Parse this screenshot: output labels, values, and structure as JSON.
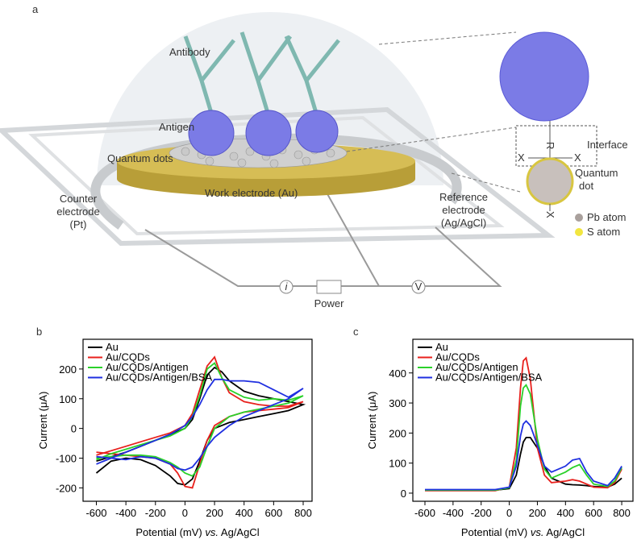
{
  "panel_labels": [
    "a",
    "b",
    "c"
  ],
  "diagram": {
    "antibody": "Antibody",
    "antigen": "Antigen",
    "quantum_dots": "Quantum dots",
    "work_electrode": "Work electrode (Au)",
    "counter_electrode": [
      "Counter",
      "electrode",
      "(Pt)"
    ],
    "reference_electrode": [
      "Reference",
      "electrode",
      "(Ag/AgCl)"
    ],
    "interface": "Interface",
    "quantum_dot": [
      "Quantum",
      "dot"
    ],
    "r": "R",
    "x": "X",
    "pb_atom": "Pb atom",
    "s_atom": "S atom",
    "current": "i",
    "voltage": "V",
    "power": "Power"
  },
  "chart_data": [
    {
      "type": "line",
      "ylabel": "Current (μA)",
      "xlabel": [
        "Potential (mV) ",
        "vs.",
        " Ag/AgCl"
      ],
      "xlim": [
        -690,
        860
      ],
      "ylim": [
        -245,
        300
      ],
      "xticks": [
        -600,
        -400,
        -200,
        0,
        200,
        400,
        600,
        800
      ],
      "yticks": [
        -200,
        -100,
        0,
        100,
        200
      ],
      "x": [
        -600,
        -500,
        -400,
        -300,
        -200,
        -100,
        0,
        50,
        100,
        150,
        200,
        250,
        300,
        400,
        500,
        600,
        700,
        800,
        700,
        600,
        500,
        400,
        300,
        200,
        150,
        100,
        50,
        0,
        -50,
        -100,
        -200,
        -300,
        -400,
        -500,
        -600
      ],
      "series": [
        {
          "name": "Au",
          "color": "#000000",
          "values": [
            -110,
            -95,
            -80,
            -60,
            -40,
            -20,
            0,
            30,
            100,
            180,
            205,
            190,
            160,
            125,
            110,
            100,
            90,
            80,
            60,
            50,
            40,
            30,
            20,
            0,
            -40,
            -110,
            -170,
            -190,
            -185,
            -160,
            -125,
            -105,
            -100,
            -110,
            -150
          ]
        },
        {
          "name": "Au/CQDs",
          "color": "#e8201c",
          "values": [
            -90,
            -75,
            -60,
            -45,
            -30,
            -15,
            10,
            50,
            130,
            210,
            240,
            170,
            120,
            90,
            80,
            75,
            75,
            90,
            70,
            65,
            60,
            55,
            40,
            10,
            -40,
            -120,
            -200,
            -195,
            -150,
            -120,
            -100,
            -95,
            -90,
            -85,
            -80
          ]
        },
        {
          "name": "Au/CQDs/Antigen",
          "color": "#2ad12a",
          "values": [
            -105,
            -85,
            -70,
            -55,
            -40,
            -25,
            0,
            40,
            110,
            200,
            220,
            170,
            130,
            105,
            95,
            100,
            95,
            110,
            85,
            75,
            65,
            55,
            40,
            0,
            -60,
            -130,
            -160,
            -150,
            -130,
            -115,
            -95,
            -90,
            -90,
            -95,
            -100
          ]
        },
        {
          "name": "Au/CQDs/Antigen/BSA",
          "color": "#1f2fe0",
          "values": [
            -120,
            -100,
            -80,
            -60,
            -40,
            -20,
            10,
            40,
            80,
            130,
            165,
            165,
            160,
            160,
            155,
            130,
            105,
            135,
            100,
            80,
            60,
            40,
            10,
            -30,
            -60,
            -100,
            -130,
            -140,
            -135,
            -120,
            -100,
            -95,
            -105,
            -100,
            -95
          ]
        }
      ]
    },
    {
      "type": "line",
      "ylabel": "Current (μA)",
      "xlabel": [
        "Potential (mV) ",
        "vs.",
        " Ag/AgCl"
      ],
      "xlim": [
        -686,
        880
      ],
      "ylim": [
        -27,
        512
      ],
      "xticks": [
        -600,
        -400,
        -200,
        0,
        200,
        400,
        600,
        800
      ],
      "yticks": [
        0,
        100,
        200,
        300,
        400
      ],
      "x": [
        -600,
        -400,
        -200,
        -100,
        0,
        50,
        80,
        100,
        120,
        150,
        200,
        250,
        300,
        400,
        450,
        500,
        550,
        600,
        700,
        750,
        800
      ],
      "series": [
        {
          "name": "Au",
          "color": "#000000",
          "values": [
            10,
            10,
            10,
            10,
            15,
            60,
            130,
            170,
            185,
            185,
            150,
            90,
            50,
            30,
            28,
            27,
            25,
            22,
            20,
            30,
            50
          ]
        },
        {
          "name": "Au/CQDs",
          "color": "#e8201c",
          "values": [
            8,
            8,
            8,
            8,
            20,
            150,
            350,
            440,
            450,
            380,
            150,
            60,
            35,
            40,
            45,
            40,
            30,
            20,
            18,
            35,
            80
          ]
        },
        {
          "name": "Au/CQDs/Antigen",
          "color": "#2ad12a",
          "values": [
            10,
            10,
            10,
            10,
            18,
            110,
            290,
            350,
            360,
            330,
            180,
            80,
            50,
            70,
            85,
            95,
            60,
            30,
            22,
            40,
            85
          ]
        },
        {
          "name": "Au/CQDs/Antigen/BSA",
          "color": "#1f2fe0",
          "values": [
            12,
            12,
            12,
            12,
            20,
            90,
            190,
            230,
            240,
            225,
            160,
            90,
            70,
            90,
            110,
            115,
            70,
            40,
            25,
            50,
            90
          ]
        }
      ]
    }
  ]
}
